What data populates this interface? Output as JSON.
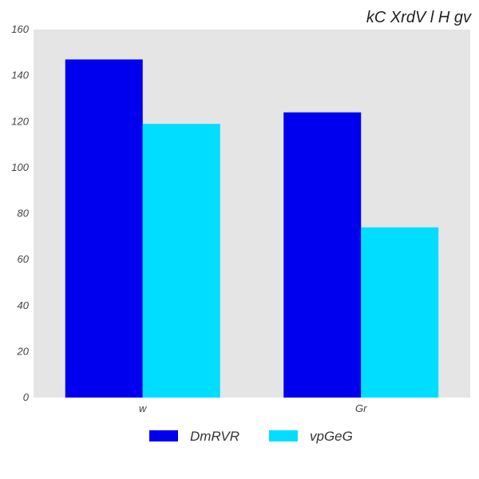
{
  "chart_data": {
    "type": "bar",
    "title": "kC XrdV l H gv",
    "xlabel": "",
    "ylabel": "",
    "categories": [
      "w",
      "Gr"
    ],
    "series": [
      {
        "name": "DmRVR",
        "values": [
          147,
          124
        ],
        "color": "#0000ee"
      },
      {
        "name": "vpGeG",
        "values": [
          119,
          74
        ],
        "color": "#00ddff"
      }
    ],
    "ylim": [
      0,
      160
    ],
    "yticks": [
      0,
      20,
      40,
      60,
      80,
      100,
      120,
      140,
      160
    ],
    "grid": false,
    "legend_position": "bottom",
    "plot_background": "#e5e5e5"
  }
}
